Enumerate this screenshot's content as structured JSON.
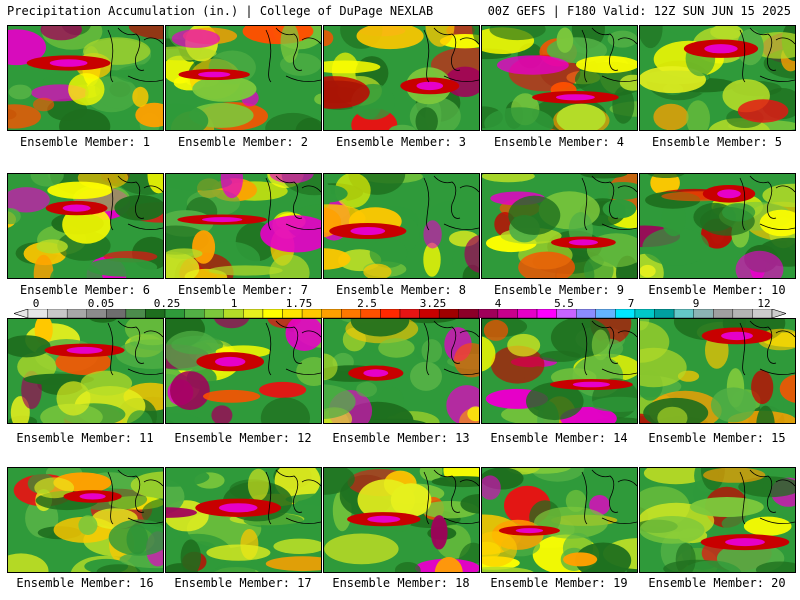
{
  "header": {
    "title_left": "Precipitation Accumulation (in.) | College of DuPage NEXLAB",
    "title_right": "00Z GEFS | F180 Valid: 12Z SUN JUN 15 2025"
  },
  "colorbar": {
    "tick_labels": [
      "0",
      "0.05",
      "0.25",
      "1",
      "1.75",
      "2.5",
      "3.25",
      "4",
      "5.5",
      "7",
      "9",
      "12"
    ],
    "colors": [
      "#e6e6e6",
      "#c8c8c8",
      "#a8a8a8",
      "#8c8c8c",
      "#6e6e6e",
      "#4c8c4c",
      "#1e6e1e",
      "#2f9a3a",
      "#52b045",
      "#7cc83c",
      "#b4dc28",
      "#e6f01e",
      "#ffff00",
      "#ffe600",
      "#ffc800",
      "#ffa000",
      "#ff7800",
      "#ff5000",
      "#ff2800",
      "#e61414",
      "#c80000",
      "#a00000",
      "#8c0028",
      "#a0005a",
      "#c8008c",
      "#e600c8",
      "#ff00ff",
      "#c864ff",
      "#8c8cff",
      "#64b4ff",
      "#00e6ff",
      "#00c8c8",
      "#00a0a0",
      "#64c8c8",
      "#8cb4b4",
      "#a0a0a0",
      "#b4b4b4",
      "#cccccc"
    ]
  },
  "panels": [
    {
      "label": "Ensemble Member: 1"
    },
    {
      "label": "Ensemble Member: 2"
    },
    {
      "label": "Ensemble Member: 3"
    },
    {
      "label": "Ensemble Member: 4"
    },
    {
      "label": "Ensemble Member: 5"
    },
    {
      "label": "Ensemble Member: 6"
    },
    {
      "label": "Ensemble Member: 7"
    },
    {
      "label": "Ensemble Member: 8"
    },
    {
      "label": "Ensemble Member: 9"
    },
    {
      "label": "Ensemble Member: 10"
    },
    {
      "label": "Ensemble Member: 11"
    },
    {
      "label": "Ensemble Member: 12"
    },
    {
      "label": "Ensemble Member: 13"
    },
    {
      "label": "Ensemble Member: 14"
    },
    {
      "label": "Ensemble Member: 15"
    },
    {
      "label": "Ensemble Member: 16"
    },
    {
      "label": "Ensemble Member: 17"
    },
    {
      "label": "Ensemble Member: 18"
    },
    {
      "label": "Ensemble Member: 19"
    },
    {
      "label": "Ensemble Member: 20"
    }
  ]
}
